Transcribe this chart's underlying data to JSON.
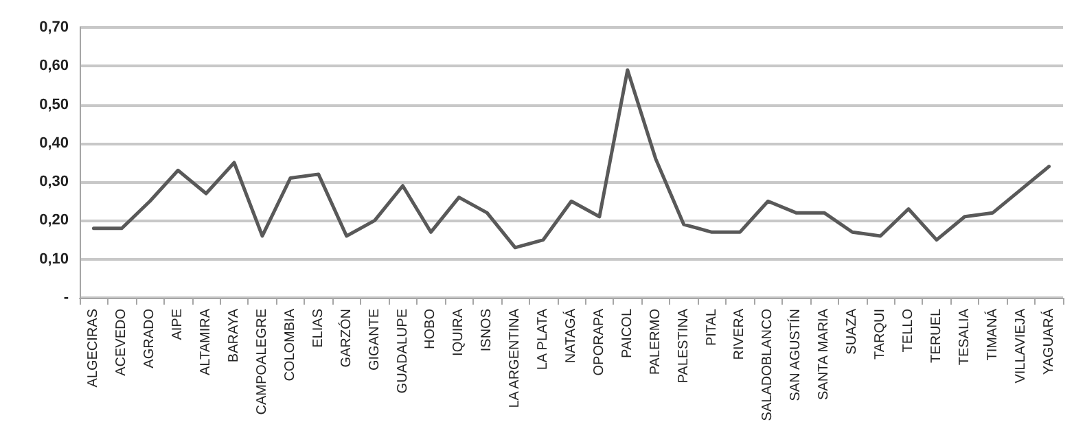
{
  "chart_data": {
    "type": "line",
    "categories": [
      "ALGECIRAS",
      "ACEVEDO",
      "AGRADO",
      "AIPE",
      "ALTAMIRA",
      "BARAYA",
      "CAMPOALEGRE",
      "COLOMBIA",
      "ELIAS",
      "GARZÓN",
      "GIGANTE",
      "GUADALUPE",
      "HOBO",
      "IQUIRA",
      "ISNOS",
      "LA ARGENTINA",
      "LA PLATA",
      "NATAGÁ",
      "OPORAPA",
      "PAICOL",
      "PALERMO",
      "PALESTINA",
      "PITAL",
      "RIVERA",
      "SALADOBLANCO",
      "SAN AGUSTÍN",
      "SANTA MARIA",
      "SUAZA",
      "TARQUI",
      "TELLO",
      "TERUEL",
      "TESALIA",
      "TIMANÁ",
      "VILLAVIEJA",
      "YAGUARÁ"
    ],
    "series": [
      {
        "color": "#595959",
        "values": [
          0.18,
          0.18,
          0.25,
          0.33,
          0.27,
          0.35,
          0.16,
          0.31,
          0.32,
          0.16,
          0.2,
          0.29,
          0.17,
          0.26,
          0.22,
          0.13,
          0.15,
          0.25,
          0.21,
          0.59,
          0.36,
          0.19,
          0.17,
          0.17,
          0.25,
          0.22,
          0.22,
          0.17,
          0.16,
          0.23,
          0.15,
          0.21,
          0.22,
          0.28,
          0.34
        ]
      }
    ],
    "ylim": [
      0,
      0.7
    ],
    "yticks": [
      {
        "value": 0,
        "label": "-"
      },
      {
        "value": 0.1,
        "label": "0,10"
      },
      {
        "value": 0.2,
        "label": "0,20"
      },
      {
        "value": 0.3,
        "label": "0,30"
      },
      {
        "value": 0.4,
        "label": "0,40"
      },
      {
        "value": 0.5,
        "label": "0,50"
      },
      {
        "value": 0.6,
        "label": "0,60"
      },
      {
        "value": 0.7,
        "label": "0,70"
      }
    ],
    "grid": "y",
    "marker": "none",
    "line_style": "solid"
  }
}
